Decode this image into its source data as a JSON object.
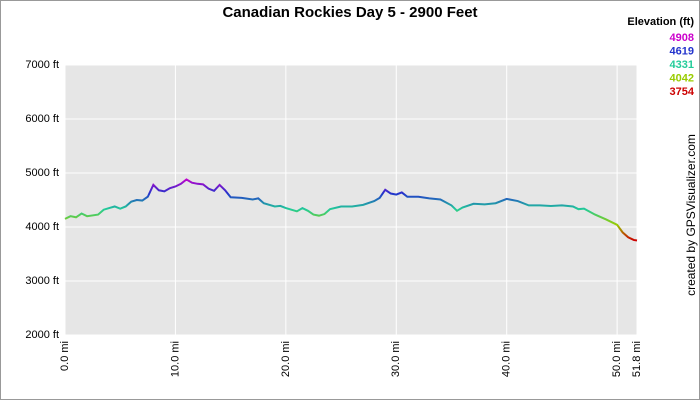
{
  "chart_data": {
    "type": "line",
    "title": "Canadian Rockies Day 5 - 2900 Feet",
    "legend_title": "Elevation (ft)",
    "legend": [
      {
        "value": 4908,
        "color": "#cc00cc"
      },
      {
        "value": 4619,
        "color": "#2233cc"
      },
      {
        "value": 4331,
        "color": "#22cc99"
      },
      {
        "value": 4042,
        "color": "#99cc00"
      },
      {
        "value": 3754,
        "color": "#cc0000"
      }
    ],
    "credit": "created by GPSVisualizer.com",
    "x": [
      0,
      0.5,
      1,
      1.5,
      2,
      3,
      3.5,
      4,
      4.5,
      5,
      5.5,
      6,
      6.5,
      7,
      7.5,
      8,
      8.5,
      9,
      9.5,
      10,
      10.5,
      11,
      11.5,
      12,
      12.5,
      13,
      13.5,
      14,
      14.5,
      15,
      16,
      17,
      17.5,
      18,
      19,
      19.5,
      20,
      21,
      21.5,
      22,
      22.5,
      23,
      23.5,
      24,
      25,
      26,
      27,
      28,
      28.5,
      29,
      29.5,
      30,
      30.5,
      31,
      32,
      33,
      34,
      35,
      35.5,
      36,
      37,
      38,
      39,
      40,
      41,
      42,
      43,
      44,
      45,
      46,
      46.5,
      47,
      48,
      49,
      50,
      50.5,
      51,
      51.5,
      51.8
    ],
    "values": [
      4150,
      4200,
      4180,
      4250,
      4200,
      4230,
      4320,
      4350,
      4380,
      4340,
      4380,
      4470,
      4500,
      4490,
      4560,
      4780,
      4680,
      4660,
      4720,
      4750,
      4800,
      4880,
      4820,
      4800,
      4790,
      4710,
      4670,
      4780,
      4680,
      4550,
      4540,
      4510,
      4530,
      4440,
      4380,
      4390,
      4350,
      4290,
      4350,
      4300,
      4230,
      4210,
      4240,
      4330,
      4380,
      4380,
      4410,
      4480,
      4540,
      4690,
      4620,
      4600,
      4640,
      4560,
      4560,
      4530,
      4510,
      4400,
      4300,
      4360,
      4430,
      4420,
      4440,
      4520,
      4480,
      4400,
      4400,
      4390,
      4400,
      4380,
      4330,
      4340,
      4230,
      4140,
      4040,
      3900,
      3810,
      3760,
      3750
    ],
    "xlim": [
      0,
      51.8
    ],
    "ylim": [
      2000,
      7000
    ],
    "xticks": [
      {
        "value": 0,
        "label": "0.0 mi"
      },
      {
        "value": 10,
        "label": "10.0 mi"
      },
      {
        "value": 20,
        "label": "20.0 mi"
      },
      {
        "value": 30,
        "label": "30.0 mi"
      },
      {
        "value": 40,
        "label": "40.0 mi"
      },
      {
        "value": 50,
        "label": "50.0 mi"
      },
      {
        "value": 51.8,
        "label": "51.8 mi"
      }
    ],
    "yticks": [
      {
        "value": 2000,
        "label": "2000 ft"
      },
      {
        "value": 3000,
        "label": "3000 ft"
      },
      {
        "value": 4000,
        "label": "4000 ft"
      },
      {
        "value": 5000,
        "label": "5000 ft"
      },
      {
        "value": 6000,
        "label": "6000 ft"
      },
      {
        "value": 7000,
        "label": "7000 ft"
      }
    ],
    "grid": true
  }
}
